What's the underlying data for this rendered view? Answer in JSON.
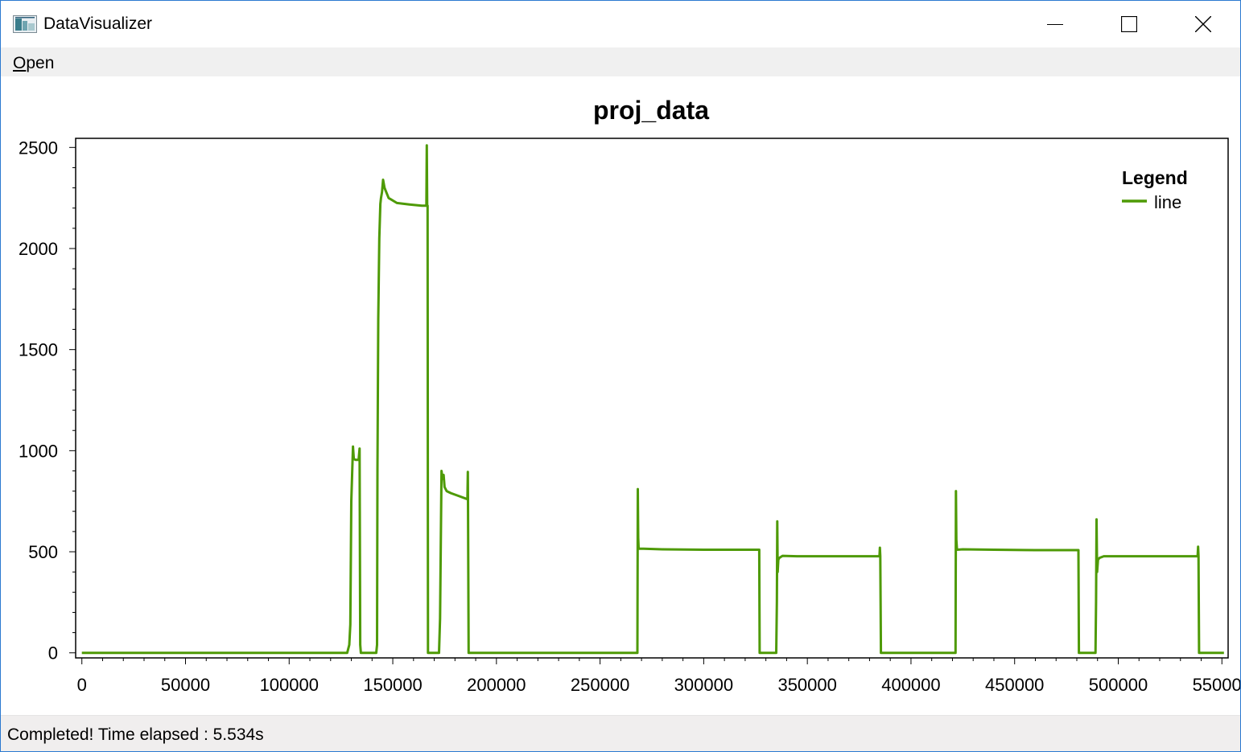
{
  "window": {
    "title": "DataVisualizer"
  },
  "menu": {
    "open_prefix": "O",
    "open_rest": "pen"
  },
  "status": {
    "text": "Completed! Time elapsed : 5.534s"
  },
  "colors": {
    "series": "#4e9a06",
    "window_border": "#2b79d0"
  },
  "icons": [
    "app-icon",
    "minimize-icon",
    "maximize-icon",
    "close-icon"
  ],
  "chart_data": {
    "type": "line",
    "title": "proj_data",
    "xlabel": "",
    "ylabel": "",
    "xlim": [
      -3000,
      553000
    ],
    "ylim": [
      -25,
      2545
    ],
    "xticks": [
      0,
      50000,
      100000,
      150000,
      200000,
      250000,
      300000,
      350000,
      400000,
      450000,
      500000,
      550000
    ],
    "xtick_labels": [
      "0",
      "50000",
      "100000",
      "150000",
      "200000",
      "250000",
      "300000",
      "350000",
      "400000",
      "450000",
      "500000",
      "550000"
    ],
    "yticks": [
      0,
      500,
      1000,
      1500,
      2000,
      2500
    ],
    "ytick_labels": [
      "0",
      "500",
      "1000",
      "1500",
      "2000",
      "2500"
    ],
    "grid": false,
    "legend": {
      "title": "Legend",
      "position": "top-right"
    },
    "series": [
      {
        "name": "line",
        "x": [
          0,
          128000,
          129000,
          129500,
          130000,
          130800,
          131200,
          132000,
          133500,
          134000,
          134300,
          134600,
          134900,
          138000,
          142000,
          142400,
          142600,
          143000,
          143500,
          144000,
          144300,
          144800,
          145300,
          146000,
          148000,
          152000,
          158000,
          164000,
          166200,
          166400,
          166600,
          166800,
          167000,
          172000,
          172300,
          172800,
          173300,
          173500,
          174000,
          174500,
          175000,
          176000,
          178000,
          182000,
          186000,
          186200,
          186300,
          186600,
          268000,
          268200,
          268400,
          268600,
          269000,
          271000,
          280000,
          300000,
          320000,
          326800,
          327000,
          335000,
          335300,
          335500,
          335700,
          336000,
          336500,
          338000,
          345000,
          360000,
          375000,
          384800,
          385000,
          385200,
          385500,
          421500,
          421700,
          421900,
          422200,
          425000,
          440000,
          460000,
          480000,
          480800,
          481000,
          489000,
          489300,
          489500,
          489800,
          490200,
          491000,
          493000,
          500000,
          515000,
          530000,
          538300,
          538500,
          538700,
          539000,
          551000
        ],
        "y": [
          0,
          0,
          40,
          140,
          750,
          1020,
          960,
          955,
          955,
          1010,
          40,
          0,
          0,
          0,
          0,
          40,
          900,
          1650,
          2050,
          2220,
          2250,
          2280,
          2340,
          2300,
          2250,
          2225,
          2218,
          2212,
          2212,
          2510,
          2212,
          2212,
          0,
          0,
          0,
          170,
          700,
          900,
          860,
          880,
          820,
          800,
          790,
          775,
          760,
          895,
          760,
          0,
          0,
          810,
          570,
          520,
          515,
          515,
          512,
          510,
          510,
          510,
          0,
          0,
          250,
          650,
          400,
          460,
          470,
          480,
          478,
          478,
          478,
          478,
          520,
          478,
          0,
          0,
          800,
          560,
          510,
          512,
          510,
          508,
          508,
          508,
          0,
          0,
          250,
          660,
          400,
          460,
          470,
          478,
          478,
          478,
          478,
          478,
          525,
          478,
          0,
          0
        ]
      }
    ]
  }
}
